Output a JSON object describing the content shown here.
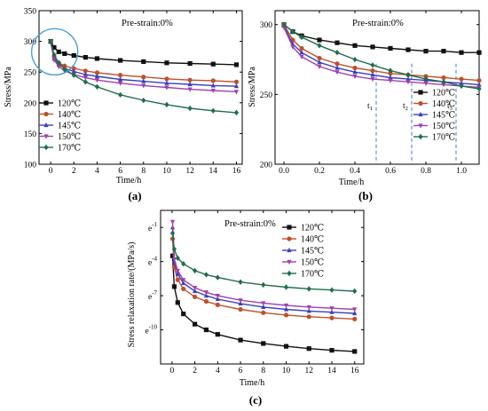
{
  "chart_data": [
    {
      "id": "a",
      "type": "line",
      "panel_label": "(a)",
      "annotation": "Pre-strain:0%",
      "xlabel": "Time/h",
      "ylabel": "Stress/MPa",
      "xlim": [
        -1,
        16.5
      ],
      "ylim": [
        100,
        350
      ],
      "xticks": [
        0,
        2,
        4,
        6,
        8,
        10,
        12,
        14,
        16
      ],
      "yticks": [
        100,
        150,
        200,
        250,
        300,
        350
      ],
      "legend_position": "left",
      "highlight": "ellipse around initial transient (0–1.5 h)",
      "series": [
        {
          "name": "120℃",
          "color": "#111111",
          "marker": "square",
          "x": [
            0,
            0.3,
            0.7,
            1.2,
            2,
            3,
            4,
            6,
            8,
            10,
            12,
            14,
            16
          ],
          "y": [
            300,
            290,
            283,
            280,
            277,
            274,
            272,
            269,
            267,
            265,
            264,
            263,
            262
          ]
        },
        {
          "name": "140℃",
          "color": "#c0502a",
          "marker": "circle",
          "x": [
            0,
            0.3,
            0.7,
            1.2,
            2,
            3,
            4,
            6,
            8,
            10,
            12,
            14,
            16
          ],
          "y": [
            300,
            275,
            265,
            260,
            256,
            252,
            249,
            245,
            242,
            239,
            237,
            236,
            234
          ]
        },
        {
          "name": "145℃",
          "color": "#3a3fc0",
          "marker": "triangle-up",
          "x": [
            0,
            0.3,
            0.7,
            1.2,
            2,
            3,
            4,
            6,
            8,
            10,
            12,
            14,
            16
          ],
          "y": [
            299,
            272,
            262,
            256,
            251,
            246,
            243,
            238,
            235,
            232,
            230,
            228,
            227
          ]
        },
        {
          "name": "150℃",
          "color": "#a040b0",
          "marker": "triangle-down",
          "x": [
            0,
            0.3,
            0.7,
            1.2,
            2,
            3,
            4,
            6,
            8,
            10,
            12,
            14,
            16
          ],
          "y": [
            299,
            270,
            259,
            252,
            246,
            241,
            237,
            232,
            228,
            225,
            222,
            220,
            218
          ]
        },
        {
          "name": "170℃",
          "color": "#1f6e4a",
          "marker": "diamond",
          "x": [
            0,
            0.3,
            0.7,
            1.2,
            2,
            3,
            4,
            6,
            8,
            10,
            12,
            14,
            16
          ],
          "y": [
            300,
            278,
            265,
            255,
            245,
            234,
            226,
            213,
            204,
            197,
            191,
            187,
            184
          ]
        }
      ]
    },
    {
      "id": "b",
      "type": "line",
      "panel_label": "(b)",
      "annotation": "Pre-strain:0%",
      "xlabel": "Time/h",
      "ylabel": "Stress/MPa",
      "xlim": [
        -0.05,
        1.1
      ],
      "ylim": [
        200,
        310
      ],
      "xticks": [
        0.0,
        0.2,
        0.4,
        0.6,
        0.8,
        1.0
      ],
      "yticks": [
        200,
        250,
        300
      ],
      "legend_position": "right",
      "vertical_markers": [
        {
          "label": "t",
          "sub": "1",
          "x": 0.52
        },
        {
          "label": "t",
          "sub": "2",
          "x": 0.72
        },
        {
          "label": "t",
          "sub": "3",
          "x": 0.97
        }
      ],
      "series": [
        {
          "name": "120℃",
          "color": "#111111",
          "marker": "square",
          "x": [
            0,
            0.05,
            0.1,
            0.2,
            0.3,
            0.4,
            0.5,
            0.6,
            0.7,
            0.8,
            0.9,
            1.0,
            1.1
          ],
          "y": [
            300,
            295,
            292,
            289,
            287,
            285,
            284,
            283,
            282,
            281,
            281,
            280,
            280
          ]
        },
        {
          "name": "140℃",
          "color": "#c0502a",
          "marker": "circle",
          "x": [
            0,
            0.05,
            0.1,
            0.2,
            0.3,
            0.4,
            0.5,
            0.6,
            0.7,
            0.8,
            0.9,
            1.0,
            1.1
          ],
          "y": [
            300,
            289,
            283,
            276,
            272,
            269,
            267,
            265,
            264,
            263,
            262,
            261,
            260
          ]
        },
        {
          "name": "145℃",
          "color": "#3a3fc0",
          "marker": "triangle-up",
          "x": [
            0,
            0.05,
            0.1,
            0.2,
            0.3,
            0.4,
            0.5,
            0.6,
            0.7,
            0.8,
            0.9,
            1.0,
            1.1
          ],
          "y": [
            299,
            286,
            280,
            273,
            269,
            266,
            264,
            262,
            261,
            260,
            259,
            258,
            257
          ]
        },
        {
          "name": "150℃",
          "color": "#a040b0",
          "marker": "triangle-down",
          "x": [
            0,
            0.05,
            0.1,
            0.2,
            0.3,
            0.4,
            0.5,
            0.6,
            0.7,
            0.8,
            0.9,
            1.0,
            1.1
          ],
          "y": [
            298,
            284,
            277,
            270,
            266,
            263,
            261,
            260,
            259,
            258,
            257,
            256,
            255
          ]
        },
        {
          "name": "170℃",
          "color": "#1f6e4a",
          "marker": "diamond",
          "x": [
            0,
            0.05,
            0.1,
            0.2,
            0.3,
            0.4,
            0.5,
            0.6,
            0.7,
            0.8,
            0.9,
            1.0,
            1.1
          ],
          "y": [
            300,
            295,
            291,
            285,
            280,
            275,
            271,
            267,
            264,
            261,
            259,
            256,
            254
          ]
        }
      ]
    },
    {
      "id": "c",
      "type": "line",
      "panel_label": "(c)",
      "annotation": "Pre-strain:0%",
      "xlabel": "Time/h",
      "ylabel": "Stress relaxation rate/(MPa/s)",
      "y_scale": "natural log",
      "xlim": [
        -1,
        16.8
      ],
      "ylim": [
        -13,
        0.5
      ],
      "xticks": [
        0,
        2,
        4,
        6,
        8,
        10,
        12,
        14,
        16
      ],
      "ytick_labels": [
        {
          "base": "e",
          "exp": "-1",
          "value": -1
        },
        {
          "base": "e",
          "exp": "-4",
          "value": -4
        },
        {
          "base": "e",
          "exp": "-7",
          "value": -7
        },
        {
          "base": "e",
          "exp": "-10",
          "value": -10
        }
      ],
      "legend_position": "top-right",
      "series": [
        {
          "name": "120℃",
          "color": "#111111",
          "marker": "square",
          "x": [
            0.05,
            0.2,
            0.5,
            1,
            2,
            3,
            4,
            6,
            8,
            10,
            12,
            14,
            16
          ],
          "y": [
            -3.5,
            -6.2,
            -7.6,
            -8.6,
            -9.5,
            -10.0,
            -10.4,
            -10.9,
            -11.2,
            -11.45,
            -11.65,
            -11.8,
            -11.9
          ]
        },
        {
          "name": "140℃",
          "color": "#c0502a",
          "marker": "circle",
          "x": [
            0.05,
            0.2,
            0.5,
            1,
            2,
            3,
            4,
            6,
            8,
            10,
            12,
            14,
            16
          ],
          "y": [
            -2.0,
            -4.5,
            -5.6,
            -6.4,
            -7.1,
            -7.5,
            -7.8,
            -8.2,
            -8.5,
            -8.7,
            -8.85,
            -8.95,
            -9.05
          ]
        },
        {
          "name": "145℃",
          "color": "#3a3fc0",
          "marker": "triangle-up",
          "x": [
            0.05,
            0.2,
            0.5,
            1,
            2,
            3,
            4,
            6,
            8,
            10,
            12,
            14,
            16
          ],
          "y": [
            -1.0,
            -4.0,
            -5.1,
            -5.9,
            -6.6,
            -7.0,
            -7.3,
            -7.7,
            -8.0,
            -8.2,
            -8.35,
            -8.45,
            -8.55
          ]
        },
        {
          "name": "150℃",
          "color": "#a040b0",
          "marker": "triangle-down",
          "x": [
            0.05,
            0.2,
            0.5,
            1,
            2,
            3,
            4,
            6,
            8,
            10,
            12,
            14,
            16
          ],
          "y": [
            -0.5,
            -3.8,
            -4.8,
            -5.6,
            -6.3,
            -6.7,
            -7.0,
            -7.4,
            -7.65,
            -7.85,
            -8.0,
            -8.1,
            -8.2
          ]
        },
        {
          "name": "170℃",
          "color": "#1f6e4a",
          "marker": "diamond",
          "x": [
            0.05,
            0.2,
            0.5,
            1,
            2,
            3,
            4,
            6,
            8,
            10,
            12,
            14,
            16
          ],
          "y": [
            -1.5,
            -2.9,
            -3.7,
            -4.2,
            -4.8,
            -5.15,
            -5.4,
            -5.8,
            -6.05,
            -6.25,
            -6.4,
            -6.5,
            -6.6
          ]
        }
      ]
    }
  ]
}
